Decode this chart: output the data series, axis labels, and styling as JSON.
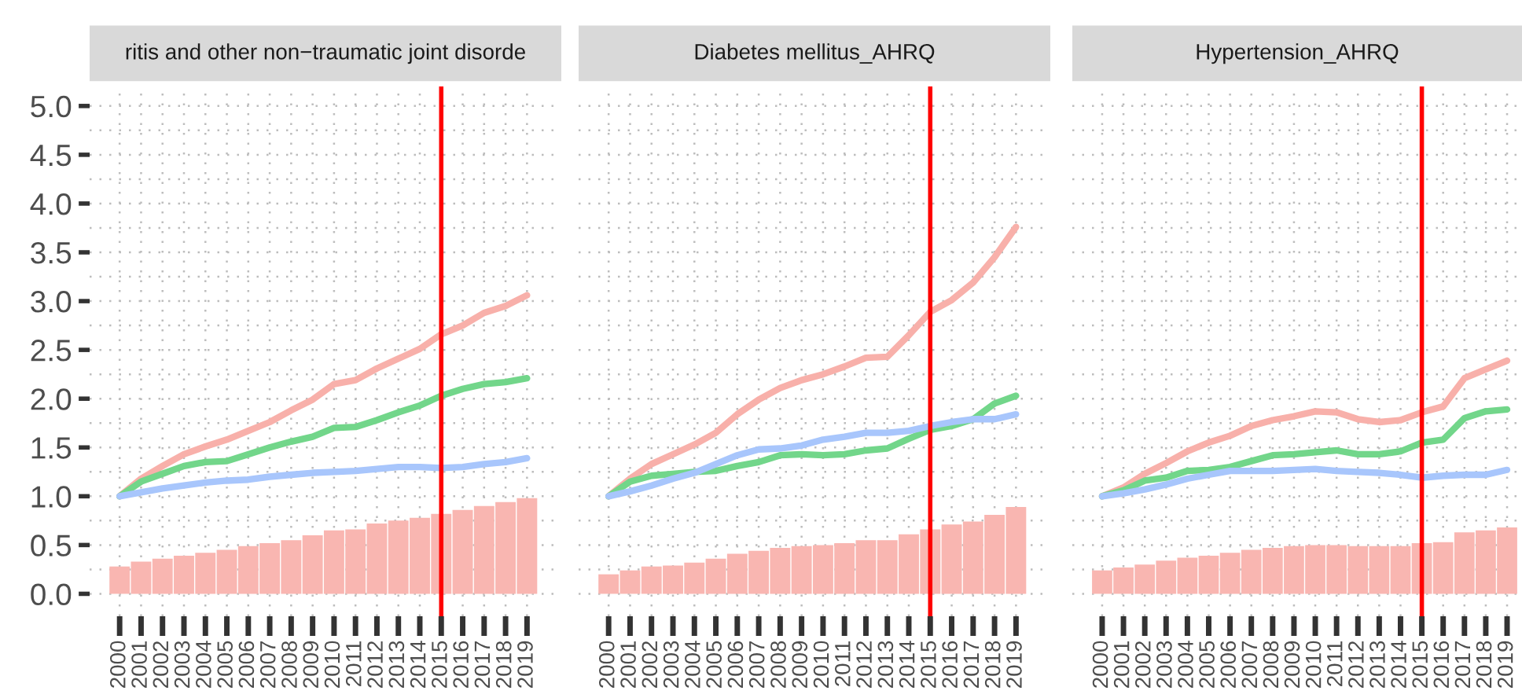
{
  "chart_data": [
    {
      "type": "bar",
      "title": "ritis and other non−traumatic joint disorde",
      "x": [
        2000,
        2001,
        2002,
        2003,
        2004,
        2005,
        2006,
        2007,
        2008,
        2009,
        2010,
        2011,
        2012,
        2013,
        2014,
        2015,
        2016,
        2017,
        2018,
        2019
      ],
      "xlim": [
        1998.6,
        2020.6
      ],
      "xticks": [
        2000,
        2001,
        2002,
        2003,
        2004,
        2005,
        2006,
        2007,
        2008,
        2009,
        2010,
        2011,
        2012,
        2013,
        2014,
        2015,
        2016,
        2017,
        2018,
        2019
      ],
      "ylim": [
        -0.23,
        5.2
      ],
      "yticks": [
        {
          "value": 0,
          "label": "0.0"
        },
        0.5,
        {
          "value": 1,
          "label": "1.0"
        },
        1.5,
        {
          "value": 2,
          "label": "2.0"
        },
        2.5,
        {
          "value": 3,
          "label": "3.0"
        },
        3.5,
        {
          "value": 4,
          "label": "4.0"
        },
        4.5,
        {
          "value": 5,
          "label": "5.0"
        }
      ],
      "grid": true,
      "ref_lines": [
        {
          "axis": "x",
          "value": 2015,
          "color": "#ff0000"
        }
      ],
      "series": [
        {
          "color": "#f9b6b1",
          "values": [
            0.28,
            0.33,
            0.36,
            0.39,
            0.42,
            0.45,
            0.49,
            0.52,
            0.55,
            0.6,
            0.65,
            0.66,
            0.72,
            0.75,
            0.78,
            0.82,
            0.86,
            0.9,
            0.94,
            0.98
          ]
        },
        {
          "type": "line",
          "color": "#f8b0aa",
          "values": [
            1.0,
            1.18,
            1.31,
            1.43,
            1.51,
            1.58,
            1.67,
            1.76,
            1.88,
            1.99,
            2.15,
            2.19,
            2.31,
            2.41,
            2.51,
            2.66,
            2.75,
            2.88,
            2.95,
            3.06
          ]
        },
        {
          "type": "line",
          "color": "#72d68a",
          "values": [
            1.0,
            1.15,
            1.23,
            1.31,
            1.35,
            1.36,
            1.43,
            1.5,
            1.56,
            1.61,
            1.7,
            1.71,
            1.78,
            1.86,
            1.93,
            2.03,
            2.1,
            2.15,
            2.17,
            2.21
          ]
        },
        {
          "type": "line",
          "color": "#a8c6fc",
          "values": [
            1.0,
            1.04,
            1.08,
            1.11,
            1.14,
            1.16,
            1.17,
            1.2,
            1.22,
            1.24,
            1.25,
            1.26,
            1.28,
            1.3,
            1.3,
            1.29,
            1.3,
            1.33,
            1.35,
            1.39
          ]
        }
      ]
    },
    {
      "type": "bar",
      "title": "Diabetes mellitus_AHRQ",
      "x": [
        2000,
        2001,
        2002,
        2003,
        2004,
        2005,
        2006,
        2007,
        2008,
        2009,
        2010,
        2011,
        2012,
        2013,
        2014,
        2015,
        2016,
        2017,
        2018,
        2019
      ],
      "xlim": [
        1998.6,
        2020.6
      ],
      "xticks": [
        2000,
        2001,
        2002,
        2003,
        2004,
        2005,
        2006,
        2007,
        2008,
        2009,
        2010,
        2011,
        2012,
        2013,
        2014,
        2015,
        2016,
        2017,
        2018,
        2019
      ],
      "ylim": [
        -0.23,
        5.2
      ],
      "yticks": [
        0,
        0.5,
        1,
        1.5,
        2,
        2.5,
        3,
        3.5,
        4,
        4.5,
        5
      ],
      "tick_labels": "x",
      "grid": true,
      "ref_lines": [
        {
          "axis": "x",
          "value": 2015,
          "color": "#ff0000"
        }
      ],
      "series": [
        {
          "color": "#f9b6b1",
          "values": [
            0.2,
            0.24,
            0.28,
            0.29,
            0.32,
            0.36,
            0.41,
            0.44,
            0.47,
            0.49,
            0.5,
            0.52,
            0.55,
            0.55,
            0.61,
            0.66,
            0.71,
            0.74,
            0.81,
            0.89
          ]
        },
        {
          "type": "line",
          "color": "#f8b0aa",
          "values": [
            1.0,
            1.18,
            1.33,
            1.43,
            1.53,
            1.65,
            1.84,
            1.99,
            2.11,
            2.19,
            2.25,
            2.33,
            2.42,
            2.43,
            2.65,
            2.89,
            3.01,
            3.19,
            3.45,
            3.76
          ]
        },
        {
          "type": "line",
          "color": "#72d68a",
          "values": [
            1.0,
            1.15,
            1.21,
            1.23,
            1.25,
            1.26,
            1.31,
            1.35,
            1.42,
            1.43,
            1.42,
            1.43,
            1.47,
            1.49,
            1.59,
            1.68,
            1.72,
            1.79,
            1.95,
            2.03
          ]
        },
        {
          "type": "line",
          "color": "#a8c6fc",
          "values": [
            1.0,
            1.05,
            1.11,
            1.18,
            1.24,
            1.33,
            1.42,
            1.48,
            1.49,
            1.52,
            1.58,
            1.61,
            1.65,
            1.65,
            1.67,
            1.72,
            1.76,
            1.79,
            1.79,
            1.84
          ]
        }
      ]
    },
    {
      "type": "bar",
      "title": "Hypertension_AHRQ",
      "x": [
        2000,
        2001,
        2002,
        2003,
        2004,
        2005,
        2006,
        2007,
        2008,
        2009,
        2010,
        2011,
        2012,
        2013,
        2014,
        2015,
        2016,
        2017,
        2018,
        2019
      ],
      "xlim": [
        1998.6,
        2019.7
      ],
      "xticks": [
        2000,
        2001,
        2002,
        2003,
        2004,
        2005,
        2006,
        2007,
        2008,
        2009,
        2010,
        2011,
        2012,
        2013,
        2014,
        2015,
        2016,
        2017,
        2018,
        2019
      ],
      "ylim": [
        -0.23,
        5.2
      ],
      "yticks": [
        0,
        0.5,
        1,
        1.5,
        2,
        2.5,
        3,
        3.5,
        4,
        4.5,
        5
      ],
      "tick_labels": "x",
      "grid": true,
      "ref_lines": [
        {
          "axis": "x",
          "value": 2015,
          "color": "#ff0000"
        }
      ],
      "series": [
        {
          "color": "#f9b6b1",
          "values": [
            0.24,
            0.27,
            0.3,
            0.34,
            0.37,
            0.39,
            0.42,
            0.45,
            0.47,
            0.49,
            0.5,
            0.5,
            0.49,
            0.49,
            0.49,
            0.52,
            0.53,
            0.63,
            0.65,
            0.68
          ]
        },
        {
          "type": "line",
          "color": "#f8b0aa",
          "values": [
            1.0,
            1.09,
            1.23,
            1.34,
            1.46,
            1.55,
            1.62,
            1.72,
            1.78,
            1.82,
            1.87,
            1.86,
            1.79,
            1.76,
            1.78,
            1.86,
            1.92,
            2.21,
            2.3,
            2.39
          ]
        },
        {
          "type": "line",
          "color": "#72d68a",
          "values": [
            1.0,
            1.06,
            1.16,
            1.19,
            1.26,
            1.27,
            1.3,
            1.36,
            1.42,
            1.43,
            1.45,
            1.47,
            1.43,
            1.43,
            1.46,
            1.55,
            1.58,
            1.8,
            1.87,
            1.89
          ]
        },
        {
          "type": "line",
          "color": "#a8c6fc",
          "values": [
            1.0,
            1.03,
            1.07,
            1.12,
            1.18,
            1.22,
            1.26,
            1.26,
            1.26,
            1.27,
            1.28,
            1.26,
            1.25,
            1.24,
            1.22,
            1.19,
            1.21,
            1.22,
            1.22,
            1.27
          ]
        }
      ]
    }
  ]
}
